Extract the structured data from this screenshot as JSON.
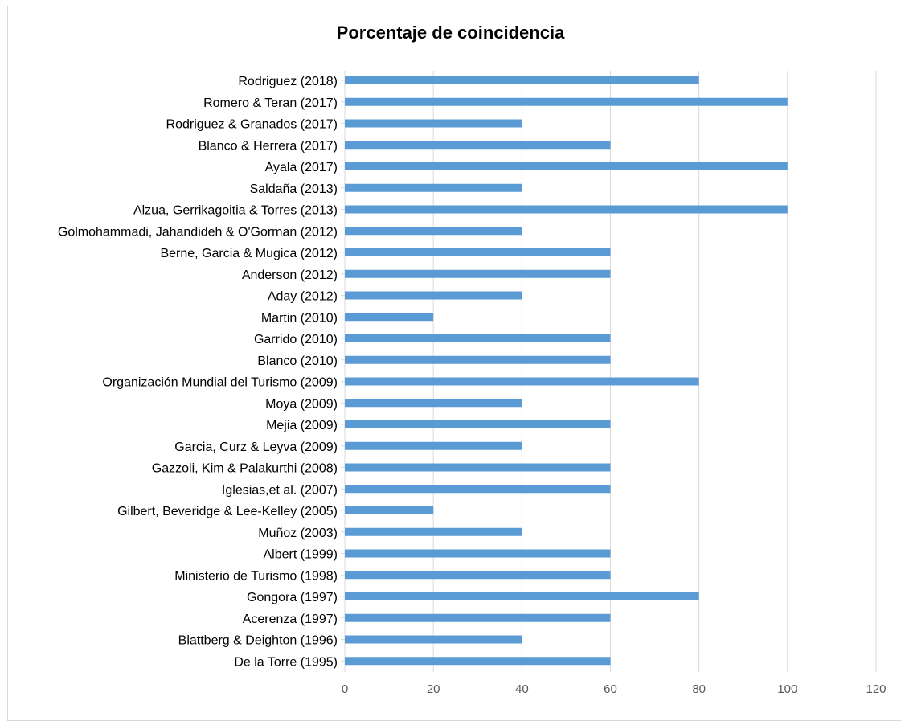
{
  "chart_data": {
    "type": "bar",
    "orientation": "horizontal",
    "title": "Porcentaje de coincidencia",
    "xlabel": "",
    "ylabel": "",
    "categories": [
      "Rodriguez (2018)",
      "Romero & Teran (2017)",
      "Rodriguez & Granados (2017)",
      "Blanco & Herrera (2017)",
      "Ayala (2017)",
      "Saldaña (2013)",
      "Alzua, Gerrikagoitia & Torres (2013)",
      "Golmohammadi, Jahandideh & O'Gorman (2012)",
      "Berne, Garcia & Mugica (2012)",
      "Anderson (2012)",
      "Aday (2012)",
      "Martin (2010)",
      "Garrido (2010)",
      "Blanco (2010)",
      "Organización Mundial del Turismo (2009)",
      "Moya (2009)",
      "Mejia (2009)",
      "Garcia, Curz & Leyva (2009)",
      "Gazzoli, Kim & Palakurthi (2008)",
      "Iglesias,et al. (2007)",
      "Gilbert, Beveridge & Lee-Kelley (2005)",
      "Muñoz (2003)",
      "Albert (1999)",
      "Ministerio de Turismo (1998)",
      "Gongora (1997)",
      "Acerenza (1997)",
      "Blattberg & Deighton (1996)",
      "De la Torre (1995)"
    ],
    "values": [
      80,
      100,
      40,
      60,
      100,
      40,
      100,
      40,
      60,
      60,
      40,
      20,
      60,
      60,
      80,
      40,
      60,
      40,
      60,
      60,
      20,
      40,
      60,
      60,
      80,
      60,
      40,
      60
    ],
    "xlim": [
      0,
      120
    ],
    "xticks": [
      "0",
      "20",
      "40",
      "60",
      "80",
      "100",
      "120"
    ],
    "grid": true,
    "legend": "none",
    "bar_color": "#5b9bd5",
    "grid_color": "#d9d9d9"
  }
}
